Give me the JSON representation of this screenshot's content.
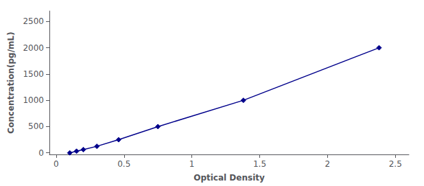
{
  "chart_data": {
    "type": "line",
    "x": [
      0.1,
      0.15,
      0.2,
      0.3,
      0.46,
      0.75,
      1.38,
      2.38
    ],
    "values": [
      0,
      31.25,
      62.5,
      125,
      250,
      500,
      1000,
      2000
    ],
    "xlabel": "Optical Density",
    "ylabel": "Concentration(pg/mL)",
    "xlim": [
      -0.05,
      2.6
    ],
    "ylim": [
      -30,
      2700
    ],
    "xticks": [
      0,
      0.5,
      1,
      1.5,
      2,
      2.5
    ],
    "yticks": [
      0,
      500,
      1000,
      1500,
      2000,
      2500
    ],
    "color": "#00008B",
    "marker": "diamond",
    "line_style": "solid",
    "grid": false
  }
}
